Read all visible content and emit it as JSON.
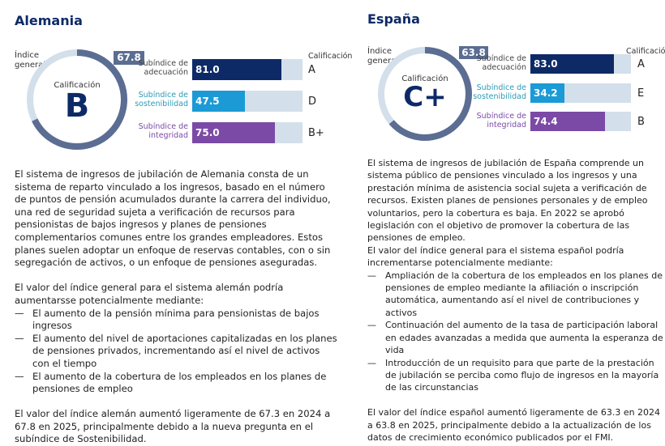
{
  "colors": {
    "navy": "#0d2a66",
    "ring_dark": "#5b6d92",
    "ring_light": "#d3dfea",
    "adequacy": "#0d2a66",
    "sustainability": "#1b9ad6",
    "integrity": "#7b4aa6",
    "sustainability_label": "#2a9bb5"
  },
  "germany": {
    "title": "Alemania",
    "index_label": "Índice general",
    "overall": 67.8,
    "overall_label": "67.8",
    "grade_caption": "Calificación",
    "grade": "B",
    "grade_header": "Calificación",
    "subindices": [
      {
        "label": "Subíndice de\nadecuación",
        "value": 81.0,
        "value_label": "81.0",
        "grade": "A"
      },
      {
        "label": "Subíndice de\nsostenibilidad",
        "value": 47.5,
        "value_label": "47.5",
        "grade": "D"
      },
      {
        "label": "Subíndice de\nintegridad",
        "value": 75.0,
        "value_label": "75.0",
        "grade": "B+"
      }
    ],
    "paragraph1": "El sistema de ingresos de jubilación de Alemania consta de un sistema de reparto vinculado a los ingresos, basado en el número de puntos de pensión acumulados durante la carrera del individuo, una red de seguridad sujeta a verificación de recursos para pensionistas de bajos ingresos y planes de pensiones complementarios comunes entre los grandes empleadores. Estos planes suelen adoptar un enfoque de reservas contables, con o sin segregación de activos, o un enfoque de pensiones aseguradas.",
    "paragraph2": "El valor del índice general para el sistema alemán podría aumentarsse potencialmente mediante:",
    "bullets": [
      "El aumento de la pensión mínima para pensionistas de bajos ingresos",
      "El aumento del nivel de aportaciones capitalizadas en los planes de pensiones privados, incrementando así el nivel de activos con el tiempo",
      "El aumento de la cobertura de los empleados en los planes de pensiones de empleo"
    ],
    "paragraph3": "El valor del índice alemán aumentó ligeramente de 67.3 en 2024 a 67.8 en 2025, principalmente debido a la nueva pregunta en el subíndice de Sostenibilidad."
  },
  "spain": {
    "title": "España",
    "index_label": "Índice general",
    "overall": 63.8,
    "overall_label": "63.8",
    "grade_caption": "Calificación",
    "grade": "C+",
    "grade_header": "Calificación",
    "subindices": [
      {
        "label": "Subíndice de\nadecuación",
        "value": 83.0,
        "value_label": "83.0",
        "grade": "A"
      },
      {
        "label": "Subíndice de\nsostenibilidad",
        "value": 34.2,
        "value_label": "34.2",
        "grade": "E"
      },
      {
        "label": "Subíndice de\nintegridad",
        "value": 74.4,
        "value_label": "74.4",
        "grade": "B"
      }
    ],
    "paragraph1": "El sistema de ingresos de jubilación de España comprende un sistema público de pensiones vinculado a los ingresos y una prestación mínima de asistencia social sujeta a verificación de recursos. Existen planes de pensiones personales y de empleo voluntarios, pero la cobertura es baja. En 2022 se aprobó legislación con el objetivo de promover la cobertura de las pensiones de empleo.",
    "paragraph2": "El valor del índice general para el sistema español podría incrementarse potencialmente mediante:",
    "bullets": [
      "Ampliación de la cobertura de los empleados en los planes de pensiones de empleo mediante la afiliación o inscripción automática, aumentando así el nivel de contribuciones y activos",
      "Continuación del aumento de la tasa de participación laboral en edades avanzadas a medida que aumenta la esperanza de vida",
      "Introducción de un requisito para que parte de la prestación de jubilación se perciba como flujo de ingresos en la mayoría de las circunstancias"
    ],
    "paragraph3": "El valor del índice español aumentó ligeramente de 63.3 en 2024 a 63.8 en 2025, principalmente debido a la actualización de los datos de crecimiento económico publicados por el FMI."
  },
  "dash": "—"
}
